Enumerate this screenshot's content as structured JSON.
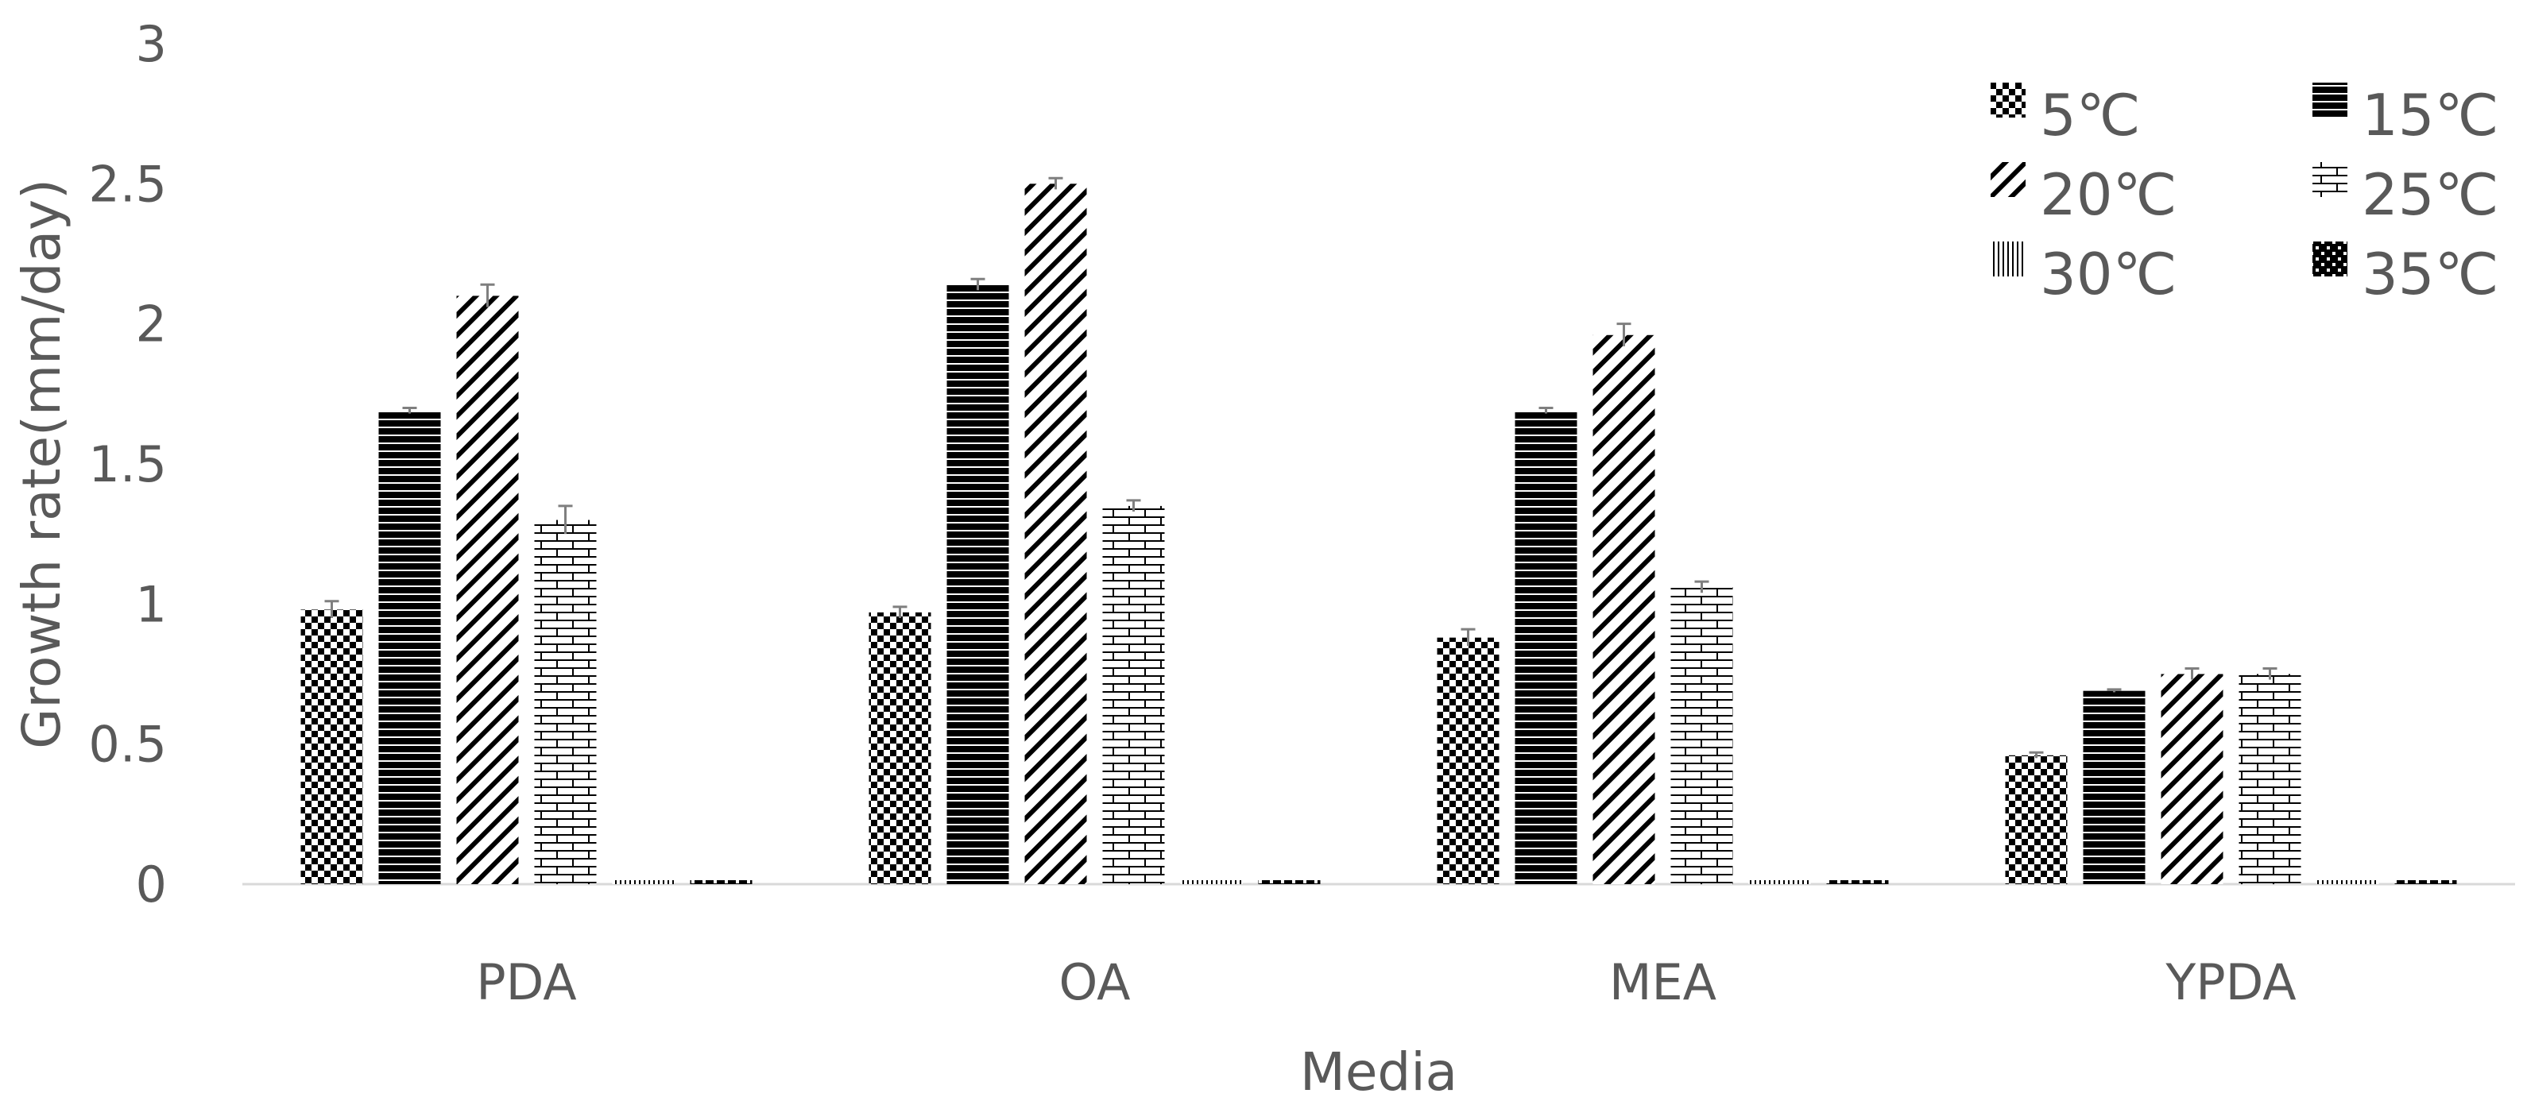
{
  "chart_data": {
    "type": "bar",
    "xlabel": "Media",
    "ylabel": "Growth rate(mm/day)",
    "categories": [
      "PDA",
      "OA",
      "MEA",
      "YPDA"
    ],
    "ylim": [
      0,
      3
    ],
    "yticks": [
      0,
      0.5,
      1,
      1.5,
      2,
      2.5,
      3
    ],
    "yticklabels": [
      "0",
      "0.5",
      "1",
      "1.5",
      "2",
      "2.5",
      "3"
    ],
    "grid": false,
    "legend_position": "top-right",
    "series": [
      {
        "name": "5℃",
        "pattern": "checker",
        "values": [
          0.98,
          0.97,
          0.88,
          0.46
        ],
        "errors": [
          0.03,
          0.02,
          0.03,
          0.01
        ]
      },
      {
        "name": "15℃",
        "pattern": "hlines",
        "values": [
          1.69,
          2.14,
          1.69,
          0.69
        ],
        "errors": [
          0.01,
          0.02,
          0.01,
          0.005
        ]
      },
      {
        "name": "20℃",
        "pattern": "diagonal",
        "values": [
          2.1,
          2.5,
          1.96,
          0.75
        ],
        "errors": [
          0.04,
          0.02,
          0.04,
          0.02
        ]
      },
      {
        "name": "25℃",
        "pattern": "brick",
        "values": [
          1.3,
          1.35,
          1.06,
          0.75
        ],
        "errors": [
          0.05,
          0.02,
          0.02,
          0.02
        ]
      },
      {
        "name": "30℃",
        "pattern": "vlines",
        "values": [
          0.01,
          0.01,
          0.01,
          0.01
        ],
        "errors": [
          0,
          0,
          0,
          0
        ]
      },
      {
        "name": "35℃",
        "pattern": "dots",
        "values": [
          0.01,
          0.01,
          0.01,
          0.01
        ],
        "errors": [
          0,
          0,
          0,
          0
        ]
      }
    ]
  },
  "colors": {
    "axis_text": "#595959",
    "axis_line": "#d9d9d9",
    "bar_ink": "#000000",
    "error_bar": "#7f7f7f"
  }
}
